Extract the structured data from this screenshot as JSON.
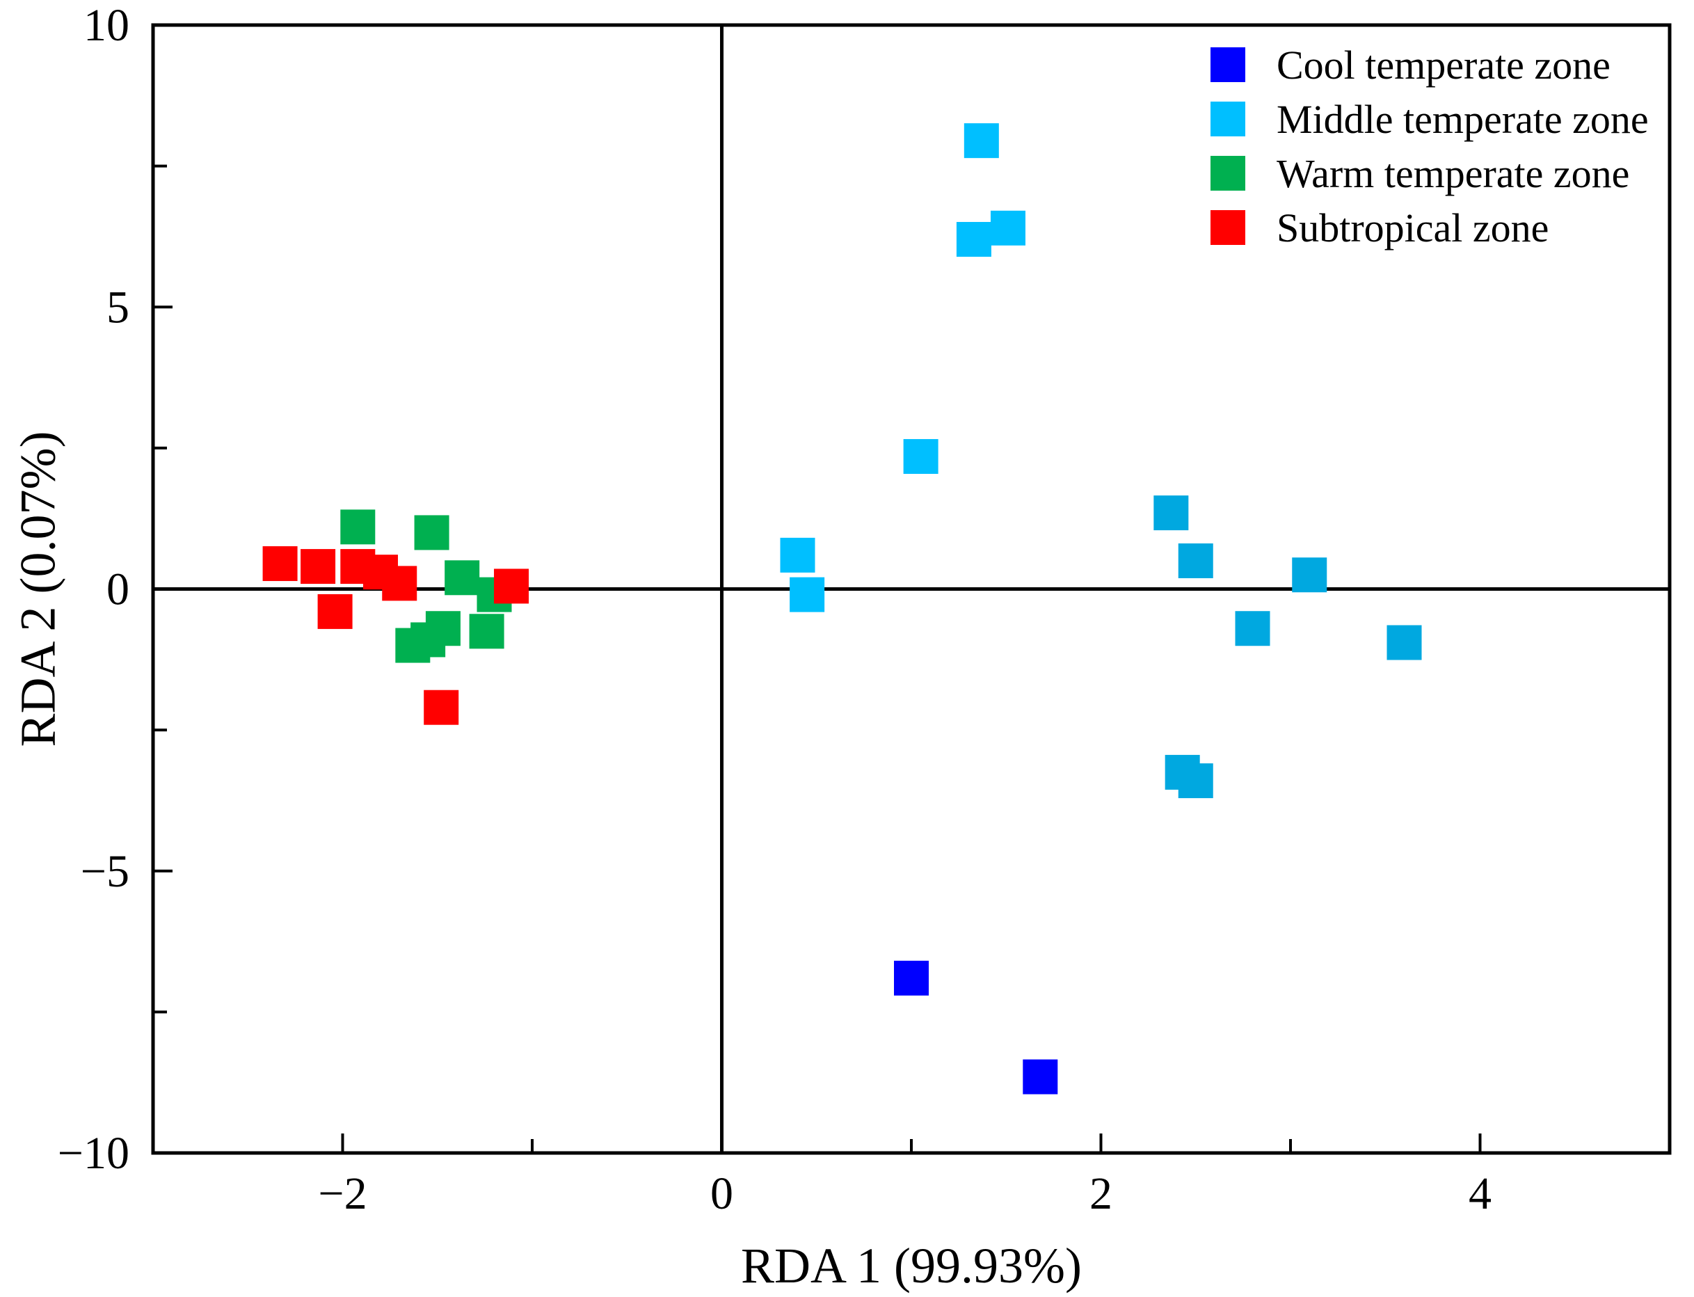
{
  "chart_data": {
    "type": "scatter",
    "title": "",
    "xlabel": "RDA 1 (99.93%)",
    "ylabel": "RDA 2 (0.07%)",
    "xlim": [
      -3,
      5
    ],
    "ylim": [
      -10,
      10
    ],
    "x_ticks": [
      -2,
      0,
      2,
      4
    ],
    "x_tick_labels": [
      "−2",
      "0",
      "2",
      "4"
    ],
    "y_ticks": [
      -10,
      -5,
      0,
      5,
      10
    ],
    "y_tick_labels": [
      "−10",
      "−5",
      "0",
      "5",
      "10"
    ],
    "reference_lines": {
      "x": 0,
      "y": 0
    },
    "grid": false,
    "legend_position": "top-right",
    "marker": "square",
    "series": [
      {
        "name": "Cool temperate zone",
        "color": "#0000FF",
        "points": [
          [
            1.0,
            -6.9
          ],
          [
            1.68,
            -8.65
          ]
        ]
      },
      {
        "name": "Middle temperate zone",
        "color": "#00BFFF",
        "points": [
          [
            1.37,
            7.95
          ],
          [
            1.51,
            6.4
          ],
          [
            1.33,
            6.2
          ],
          [
            1.05,
            2.35
          ],
          [
            0.4,
            0.6
          ],
          [
            0.45,
            -0.1
          ],
          [
            2.37,
            1.35
          ],
          [
            2.5,
            0.5
          ],
          [
            3.1,
            0.25
          ],
          [
            2.8,
            -0.7
          ],
          [
            3.6,
            -0.95
          ],
          [
            2.43,
            -3.25
          ],
          [
            2.5,
            -3.4
          ]
        ],
        "shade_variants": [
          "#00BFFF",
          "#00A8E0"
        ]
      },
      {
        "name": "Warm temperate zone",
        "color": "#00B050",
        "points": [
          [
            -1.92,
            1.1
          ],
          [
            -1.53,
            1.0
          ],
          [
            -1.37,
            0.2
          ],
          [
            -1.2,
            -0.1
          ],
          [
            -1.47,
            -0.7
          ],
          [
            -1.55,
            -0.9
          ],
          [
            -1.63,
            -1.0
          ],
          [
            -1.24,
            -0.75
          ]
        ]
      },
      {
        "name": "Subtropical zone",
        "color": "#FF0000",
        "points": [
          [
            -2.33,
            0.45
          ],
          [
            -2.13,
            0.4
          ],
          [
            -1.92,
            0.4
          ],
          [
            -1.8,
            0.3
          ],
          [
            -1.7,
            0.1
          ],
          [
            -2.04,
            -0.4
          ],
          [
            -1.48,
            -2.1
          ],
          [
            -1.11,
            0.05
          ]
        ]
      }
    ]
  }
}
